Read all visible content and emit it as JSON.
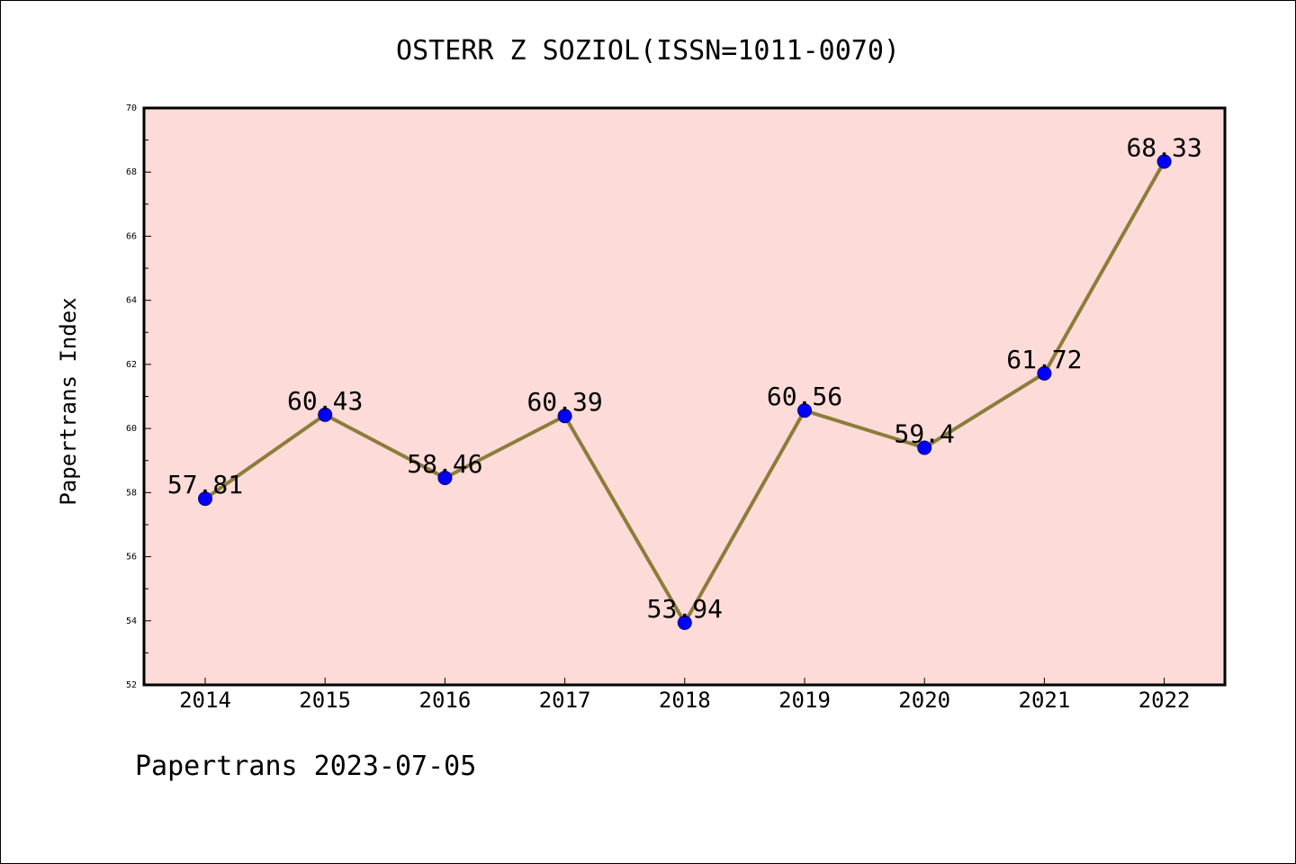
{
  "footer": "Papertrans 2023-07-05",
  "chart_data": {
    "type": "line",
    "title": "OSTERR Z SOZIOL(ISSN=1011-0070)",
    "xlabel": "",
    "ylabel": "Papertrans Index",
    "categories": [
      "2014",
      "2015",
      "2016",
      "2017",
      "2018",
      "2019",
      "2020",
      "2021",
      "2022"
    ],
    "values": [
      57.81,
      60.43,
      58.46,
      60.39,
      53.94,
      60.56,
      59.4,
      61.72,
      68.33
    ],
    "data_labels": [
      "57.81",
      "60.43",
      "58.46",
      "60.39",
      "53.94",
      "60.56",
      "59.4",
      "61.72",
      "68.33"
    ],
    "ylim": [
      52,
      70
    ],
    "yticks": [
      52,
      54,
      56,
      58,
      60,
      62,
      64,
      66,
      68,
      70
    ],
    "grid": false,
    "colors": {
      "plot_bg": "#fddbd8",
      "line": "#8b7d3a",
      "marker": "#0000ff"
    }
  }
}
